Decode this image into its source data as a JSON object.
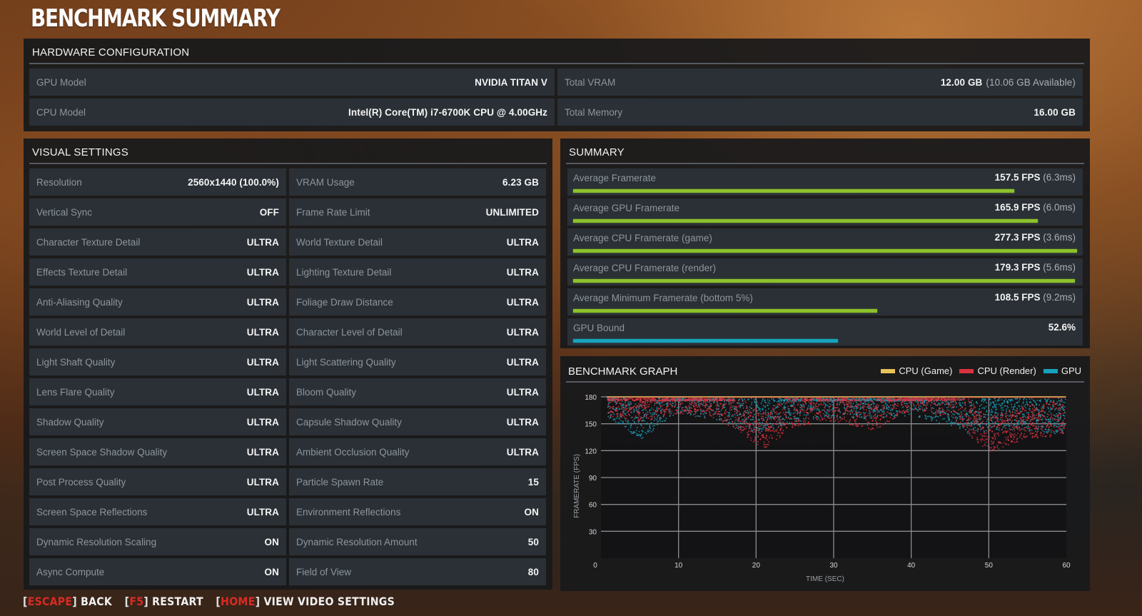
{
  "title": "BENCHMARK SUMMARY",
  "hardware": {
    "header": "HARDWARE CONFIGURATION",
    "left": [
      {
        "label": "GPU Model",
        "value": "NVIDIA TITAN V",
        "sub": ""
      },
      {
        "label": "CPU Model",
        "value": "Intel(R) Core(TM) i7-6700K CPU @ 4.00GHz",
        "sub": ""
      }
    ],
    "right": [
      {
        "label": "Total VRAM",
        "value": "12.00 GB",
        "sub": "(10.06 GB Available)"
      },
      {
        "label": "Total Memory",
        "value": "16.00 GB",
        "sub": ""
      }
    ]
  },
  "visual": {
    "header": "VISUAL SETTINGS",
    "left": [
      {
        "label": "Resolution",
        "value": "2560x1440 (100.0%)"
      },
      {
        "label": "Vertical Sync",
        "value": "OFF"
      },
      {
        "label": "Character Texture Detail",
        "value": "ULTRA"
      },
      {
        "label": "Effects Texture Detail",
        "value": "ULTRA"
      },
      {
        "label": "Anti-Aliasing Quality",
        "value": "ULTRA"
      },
      {
        "label": "World Level of Detail",
        "value": "ULTRA"
      },
      {
        "label": "Light Shaft Quality",
        "value": "ULTRA"
      },
      {
        "label": "Lens Flare Quality",
        "value": "ULTRA"
      },
      {
        "label": "Shadow Quality",
        "value": "ULTRA"
      },
      {
        "label": "Screen Space Shadow Quality",
        "value": "ULTRA"
      },
      {
        "label": "Post Process Quality",
        "value": "ULTRA"
      },
      {
        "label": "Screen Space Reflections",
        "value": "ULTRA"
      },
      {
        "label": "Dynamic Resolution Scaling",
        "value": "ON"
      },
      {
        "label": "Async Compute",
        "value": "ON"
      }
    ],
    "right": [
      {
        "label": "VRAM Usage",
        "value": "6.23 GB"
      },
      {
        "label": "Frame Rate Limit",
        "value": "UNLIMITED"
      },
      {
        "label": "World Texture Detail",
        "value": "ULTRA"
      },
      {
        "label": "Lighting Texture Detail",
        "value": "ULTRA"
      },
      {
        "label": "Foliage Draw Distance",
        "value": "ULTRA"
      },
      {
        "label": "Character Level of Detail",
        "value": "ULTRA"
      },
      {
        "label": "Light Scattering Quality",
        "value": "ULTRA"
      },
      {
        "label": "Bloom Quality",
        "value": "ULTRA"
      },
      {
        "label": "Capsule Shadow Quality",
        "value": "ULTRA"
      },
      {
        "label": "Ambient Occlusion Quality",
        "value": "ULTRA"
      },
      {
        "label": "Particle Spawn Rate",
        "value": "15"
      },
      {
        "label": "Environment Reflections",
        "value": "ON"
      },
      {
        "label": "Dynamic Resolution Amount",
        "value": "50"
      },
      {
        "label": "Field of View",
        "value": "80"
      }
    ]
  },
  "summary": {
    "header": "SUMMARY",
    "rows": [
      {
        "label": "Average Framerate",
        "value": "157.5 FPS",
        "sub": "(6.3ms)",
        "bar_pct": 87.5,
        "bar_color": "green"
      },
      {
        "label": "Average GPU Framerate",
        "value": "165.9 FPS",
        "sub": "(6.0ms)",
        "bar_pct": 92.2,
        "bar_color": "green"
      },
      {
        "label": "Average CPU Framerate (game)",
        "value": "277.3 FPS",
        "sub": "(3.6ms)",
        "bar_pct": 100,
        "bar_color": "green"
      },
      {
        "label": "Average CPU Framerate (render)",
        "value": "179.3 FPS",
        "sub": "(5.6ms)",
        "bar_pct": 99.6,
        "bar_color": "green"
      },
      {
        "label": "Average Minimum Framerate (bottom 5%)",
        "value": "108.5 FPS",
        "sub": "(9.2ms)",
        "bar_pct": 60.3,
        "bar_color": "green"
      },
      {
        "label": "GPU Bound",
        "value": "52.6%",
        "sub": "",
        "bar_pct": 52.6,
        "bar_color": "blue"
      }
    ]
  },
  "graph": {
    "header": "BENCHMARK GRAPH",
    "legend": [
      {
        "label": "CPU (Game)",
        "color": "#e8c25a"
      },
      {
        "label": "CPU (Render)",
        "color": "#d8333f"
      },
      {
        "label": "GPU",
        "color": "#17a3bd"
      }
    ]
  },
  "chart_data": {
    "type": "scatter",
    "title": "BENCHMARK GRAPH",
    "xlabel": "TIME (SEC)",
    "ylabel": "FRAMERATE (FPS)",
    "x_ticks": [
      0,
      10,
      20,
      30,
      40,
      50,
      60
    ],
    "y_ticks": [
      30,
      60,
      90,
      120,
      150,
      180
    ],
    "y_zero_label": "0",
    "xlim": [
      0,
      60
    ],
    "ylim": [
      0,
      180
    ],
    "grid": true,
    "legend_position": "top-right",
    "series": [
      {
        "name": "CPU (Game)",
        "color": "#e8c25a",
        "note": "capped near 180 FPS throughout",
        "x": [
          0,
          10,
          20,
          30,
          40,
          50,
          60
        ],
        "values": [
          180,
          180,
          180,
          180,
          180,
          180,
          180
        ]
      },
      {
        "name": "CPU (Render)",
        "color": "#d8333f",
        "note": "mostly 150-180; dips ~130 at 20s, ~115-140 at 48-60s",
        "x": [
          0,
          5,
          10,
          15,
          20,
          21,
          25,
          30,
          35,
          40,
          45,
          48,
          50,
          55,
          60
        ],
        "values": [
          170,
          165,
          172,
          168,
          140,
          135,
          160,
          165,
          155,
          178,
          170,
          145,
          130,
          145,
          150
        ]
      },
      {
        "name": "GPU",
        "color": "#17a3bd",
        "note": "mostly 160-180; dips ~140 at 5s, ~145 at 45-60s",
        "x": [
          0,
          5,
          10,
          15,
          20,
          25,
          30,
          35,
          40,
          45,
          48,
          50,
          55,
          60
        ],
        "values": [
          175,
          145,
          175,
          165,
          150,
          165,
          170,
          168,
          172,
          160,
          150,
          155,
          155,
          150
        ]
      }
    ]
  },
  "footer": {
    "actions": [
      {
        "key": "ESCAPE",
        "label": "BACK"
      },
      {
        "key": "F5",
        "label": "RESTART"
      },
      {
        "key": "HOME",
        "label": "VIEW VIDEO SETTINGS"
      }
    ]
  }
}
